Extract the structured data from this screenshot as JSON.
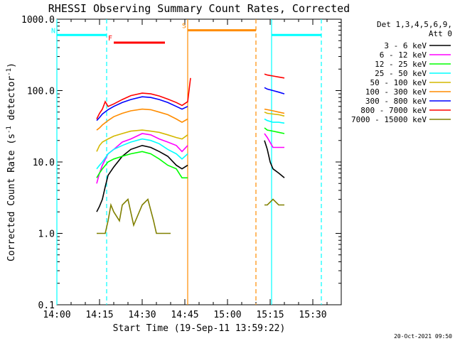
{
  "chart_data": {
    "type": "line",
    "title": "RHESSI Observing Summary Count Rates, Corrected",
    "xlabel": "Start Time (19-Sep-11 13:59:22)",
    "ylabel": "Corrected Count Rate (s⁻¹ detector⁻¹)",
    "ylabel_main": "Corrected Count Rate (s",
    "ylabel_sup1": "-1",
    "ylabel_mid": " detector",
    "ylabel_sup2": "-1",
    "ylabel_end": ")",
    "y_scale": "log",
    "ylim": [
      0.1,
      1000
    ],
    "xlim": [
      0,
      100
    ],
    "x_unit": "minutes after 14:00",
    "xticks": [
      {
        "value": 0,
        "label": "14:00"
      },
      {
        "value": 15,
        "label": "14:15"
      },
      {
        "value": 30,
        "label": "14:30"
      },
      {
        "value": 45,
        "label": "14:45"
      },
      {
        "value": 60,
        "label": "15:00"
      },
      {
        "value": 75,
        "label": "15:15"
      },
      {
        "value": 90,
        "label": "15:30"
      }
    ],
    "yticks": [
      {
        "value": 0.1,
        "label": "0.1"
      },
      {
        "value": 1,
        "label": "1.0"
      },
      {
        "value": 10,
        "label": "10.0"
      },
      {
        "value": 100,
        "label": "100.0"
      },
      {
        "value": 1000,
        "label": "1000.0"
      }
    ],
    "legend_title": "Det 1,3,4,5,6,9,",
    "legend_subtitle": "Att 0",
    "legend_position": "right",
    "segments": [
      [
        14,
        47
      ],
      [
        73,
        81
      ]
    ],
    "series": [
      {
        "name": "3 - 6 keV",
        "color": "#000000",
        "points_a": [
          [
            14,
            2
          ],
          [
            15,
            2.4
          ],
          [
            16,
            3
          ],
          [
            17,
            4.5
          ],
          [
            18,
            6.5
          ],
          [
            20,
            8.5
          ],
          [
            23,
            12
          ],
          [
            26,
            15
          ],
          [
            30,
            17
          ],
          [
            33,
            16
          ],
          [
            36,
            14
          ],
          [
            39,
            12
          ],
          [
            42,
            9
          ],
          [
            44,
            8
          ],
          [
            46,
            9
          ]
        ],
        "points_b": [
          [
            73,
            20
          ],
          [
            74,
            15
          ],
          [
            75,
            10
          ],
          [
            76,
            8
          ],
          [
            78,
            7
          ],
          [
            80,
            6
          ]
        ]
      },
      {
        "name": "6 - 12 keV",
        "color": "#ff00ff",
        "points_a": [
          [
            14,
            5
          ],
          [
            15,
            7
          ],
          [
            16,
            9
          ],
          [
            18,
            13
          ],
          [
            20,
            15
          ],
          [
            23,
            19
          ],
          [
            26,
            21
          ],
          [
            30,
            25
          ],
          [
            33,
            24
          ],
          [
            36,
            21
          ],
          [
            39,
            19
          ],
          [
            42,
            17
          ],
          [
            44,
            14
          ],
          [
            46,
            17
          ]
        ],
        "points_b": [
          [
            73,
            25
          ],
          [
            74,
            22
          ],
          [
            76,
            16
          ],
          [
            78,
            16
          ],
          [
            80,
            16
          ]
        ]
      },
      {
        "name": "12 - 25 keV",
        "color": "#00ff00",
        "points_a": [
          [
            14,
            6
          ],
          [
            15,
            7
          ],
          [
            16,
            8
          ],
          [
            18,
            10
          ],
          [
            20,
            11
          ],
          [
            23,
            12
          ],
          [
            26,
            13
          ],
          [
            30,
            14
          ],
          [
            33,
            13
          ],
          [
            36,
            11
          ],
          [
            39,
            9
          ],
          [
            42,
            8
          ],
          [
            44,
            6
          ],
          [
            46,
            6
          ]
        ],
        "points_b": [
          [
            73,
            30
          ],
          [
            74,
            28
          ],
          [
            76,
            27
          ],
          [
            78,
            26
          ],
          [
            80,
            25
          ]
        ]
      },
      {
        "name": "25 - 50 keV",
        "color": "#00ffff",
        "points_a": [
          [
            14,
            8
          ],
          [
            15,
            9
          ],
          [
            16,
            10
          ],
          [
            18,
            13
          ],
          [
            20,
            15
          ],
          [
            23,
            17
          ],
          [
            26,
            19
          ],
          [
            30,
            21
          ],
          [
            33,
            20
          ],
          [
            36,
            18
          ],
          [
            39,
            15
          ],
          [
            42,
            13
          ],
          [
            44,
            11
          ],
          [
            46,
            13
          ]
        ],
        "points_b": [
          [
            73,
            40
          ],
          [
            74,
            38
          ],
          [
            76,
            36
          ],
          [
            78,
            36
          ],
          [
            80,
            35
          ]
        ]
      },
      {
        "name": "50 - 100 keV",
        "color": "#d4b800",
        "points_a": [
          [
            14,
            14
          ],
          [
            15,
            17
          ],
          [
            16,
            19
          ],
          [
            18,
            21
          ],
          [
            20,
            23
          ],
          [
            23,
            25
          ],
          [
            26,
            27
          ],
          [
            30,
            28
          ],
          [
            33,
            27
          ],
          [
            36,
            26
          ],
          [
            39,
            24
          ],
          [
            42,
            22
          ],
          [
            44,
            21
          ],
          [
            46,
            24
          ]
        ],
        "points_b": [
          [
            73,
            50
          ],
          [
            74,
            48
          ],
          [
            76,
            47
          ],
          [
            78,
            46
          ],
          [
            80,
            44
          ]
        ]
      },
      {
        "name": "100 - 300 keV",
        "color": "#ff8c00",
        "points_a": [
          [
            14,
            28
          ],
          [
            15,
            30
          ],
          [
            16,
            33
          ],
          [
            18,
            38
          ],
          [
            20,
            43
          ],
          [
            23,
            48
          ],
          [
            26,
            52
          ],
          [
            30,
            55
          ],
          [
            33,
            54
          ],
          [
            36,
            50
          ],
          [
            39,
            46
          ],
          [
            42,
            40
          ],
          [
            44,
            36
          ],
          [
            46,
            40
          ]
        ],
        "points_b": [
          [
            73,
            55
          ],
          [
            74,
            54
          ],
          [
            76,
            52
          ],
          [
            78,
            50
          ],
          [
            80,
            48
          ]
        ]
      },
      {
        "name": "300 - 800 keV",
        "color": "#0000ff",
        "points_a": [
          [
            14,
            38
          ],
          [
            15,
            42
          ],
          [
            16,
            47
          ],
          [
            18,
            54
          ],
          [
            20,
            60
          ],
          [
            23,
            68
          ],
          [
            26,
            75
          ],
          [
            30,
            82
          ],
          [
            33,
            80
          ],
          [
            36,
            75
          ],
          [
            39,
            68
          ],
          [
            42,
            60
          ],
          [
            44,
            55
          ],
          [
            46,
            60
          ]
        ],
        "points_b": [
          [
            73,
            110
          ],
          [
            74,
            105
          ],
          [
            76,
            100
          ],
          [
            78,
            95
          ],
          [
            80,
            90
          ]
        ]
      },
      {
        "name": "800 - 7000 keV",
        "color": "#ff0000",
        "points_a": [
          [
            14,
            40
          ],
          [
            15,
            48
          ],
          [
            16,
            55
          ],
          [
            17,
            70
          ],
          [
            18,
            60
          ],
          [
            20,
            65
          ],
          [
            23,
            75
          ],
          [
            26,
            85
          ],
          [
            30,
            92
          ],
          [
            33,
            90
          ],
          [
            36,
            84
          ],
          [
            39,
            76
          ],
          [
            42,
            68
          ],
          [
            44,
            62
          ],
          [
            46,
            70
          ],
          [
            47,
            150
          ]
        ],
        "points_b": [
          [
            73,
            170
          ],
          [
            74,
            165
          ],
          [
            76,
            160
          ],
          [
            78,
            155
          ],
          [
            80,
            150
          ]
        ]
      },
      {
        "name": "7000 - 15000 keV",
        "color": "#808000",
        "points_a": [
          [
            14,
            1
          ],
          [
            17,
            1
          ],
          [
            18,
            1.5
          ],
          [
            19,
            2.5
          ],
          [
            20,
            2
          ],
          [
            22,
            1.5
          ],
          [
            23,
            2.5
          ],
          [
            25,
            3
          ],
          [
            27,
            1.3
          ],
          [
            30,
            2.5
          ],
          [
            32,
            3
          ],
          [
            34,
            1.5
          ],
          [
            35,
            1
          ],
          [
            36,
            1
          ],
          [
            38,
            1
          ],
          [
            40,
            1
          ]
        ],
        "points_b": [
          [
            73,
            2.5
          ],
          [
            74,
            2.5
          ],
          [
            76,
            3
          ],
          [
            78,
            2.5
          ],
          [
            80,
            2.5
          ]
        ]
      }
    ],
    "bars": [
      {
        "label": "N",
        "color": "#00ffff",
        "y": 600,
        "ranges": [
          [
            0,
            17.5
          ],
          [
            75.5,
            93
          ]
        ]
      },
      {
        "label": "F",
        "color": "#ff0000",
        "y": 470,
        "ranges": [
          [
            20,
            38
          ]
        ]
      },
      {
        "label": "S",
        "color": "#ff8c00",
        "y": 700,
        "ranges": [
          [
            46,
            70
          ]
        ]
      }
    ],
    "vlines": [
      {
        "x": 0,
        "color": "#00ffff",
        "dash": false
      },
      {
        "x": 17.5,
        "color": "#00ffff",
        "dash": true
      },
      {
        "x": 46,
        "color": "#ff8c00",
        "dash": false
      },
      {
        "x": 70,
        "color": "#ff8c00",
        "dash": true
      },
      {
        "x": 75.5,
        "color": "#00ffff",
        "dash": false
      },
      {
        "x": 93,
        "color": "#00ffff",
        "dash": true
      }
    ],
    "footer_date": "20-Oct-2021 09:50"
  }
}
